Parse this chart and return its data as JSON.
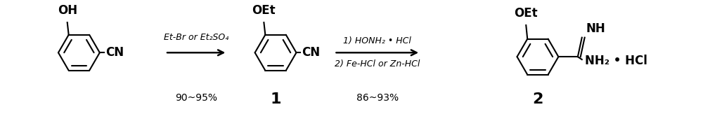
{
  "bg_color": "#ffffff",
  "fig_width": 10.0,
  "fig_height": 1.63,
  "dpi": 100,
  "arrow1_label_top": "Et-Br or Et₂SO₄",
  "arrow1_label_bot": "90~95%",
  "arrow2_label_line1": "1) HONH₂ • HCl",
  "arrow2_label_line2": "2) Fe-HCl or Zn-HCl",
  "arrow2_label_bot": "86~93%",
  "compound1_label": "1",
  "compound2_label": "2",
  "font_size_bold": 11,
  "font_size_arrow_label": 9,
  "font_size_yield": 10,
  "font_size_compound_num": 13
}
